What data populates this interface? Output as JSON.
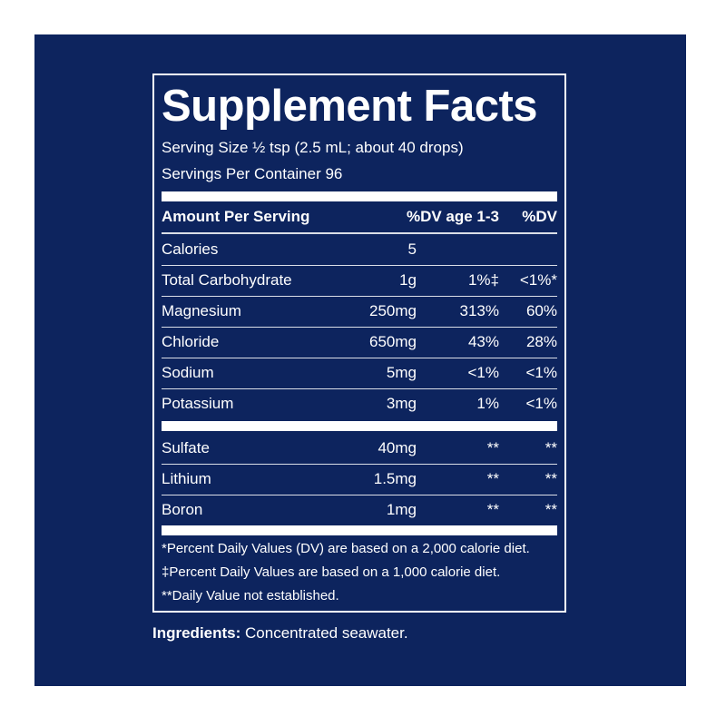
{
  "title": "Supplement Facts",
  "serving_size": "Serving Size ½ tsp (2.5 mL; about 40 drops)",
  "servings_per_container": "Servings Per Container 96",
  "header": {
    "amount": "Amount Per Serving",
    "dv_age": "%DV age 1-3",
    "dv": "%DV"
  },
  "nutrients": [
    {
      "name": "Calories",
      "amount": "5",
      "dv_age": "",
      "dv": ""
    },
    {
      "name": "Total Carbohydrate",
      "amount": "1g",
      "dv_age": "1%‡",
      "dv": "<1%*"
    },
    {
      "name": "Magnesium",
      "amount": "250mg",
      "dv_age": "313%",
      "dv": "60%"
    },
    {
      "name": "Chloride",
      "amount": "650mg",
      "dv_age": "43%",
      "dv": "28%"
    },
    {
      "name": "Sodium",
      "amount": "5mg",
      "dv_age": "<1%",
      "dv": "<1%"
    },
    {
      "name": "Potassium",
      "amount": "3mg",
      "dv_age": "1%",
      "dv": "<1%"
    }
  ],
  "other": [
    {
      "name": "Sulfate",
      "amount": "40mg",
      "dv_age": "**",
      "dv": "**"
    },
    {
      "name": "Lithium",
      "amount": "1.5mg",
      "dv_age": "**",
      "dv": "**"
    },
    {
      "name": "Boron",
      "amount": "1mg",
      "dv_age": "**",
      "dv": "**"
    }
  ],
  "footnotes": [
    "*Percent Daily Values (DV) are based on a 2,000 calorie diet.",
    "‡Percent Daily Values are based on a 1,000 calorie diet.",
    "**Daily Value not established."
  ],
  "ingredients": {
    "label": "Ingredients:",
    "text": "Concentrated seawater."
  },
  "colors": {
    "background": "#0d245e",
    "text": "#ffffff"
  }
}
